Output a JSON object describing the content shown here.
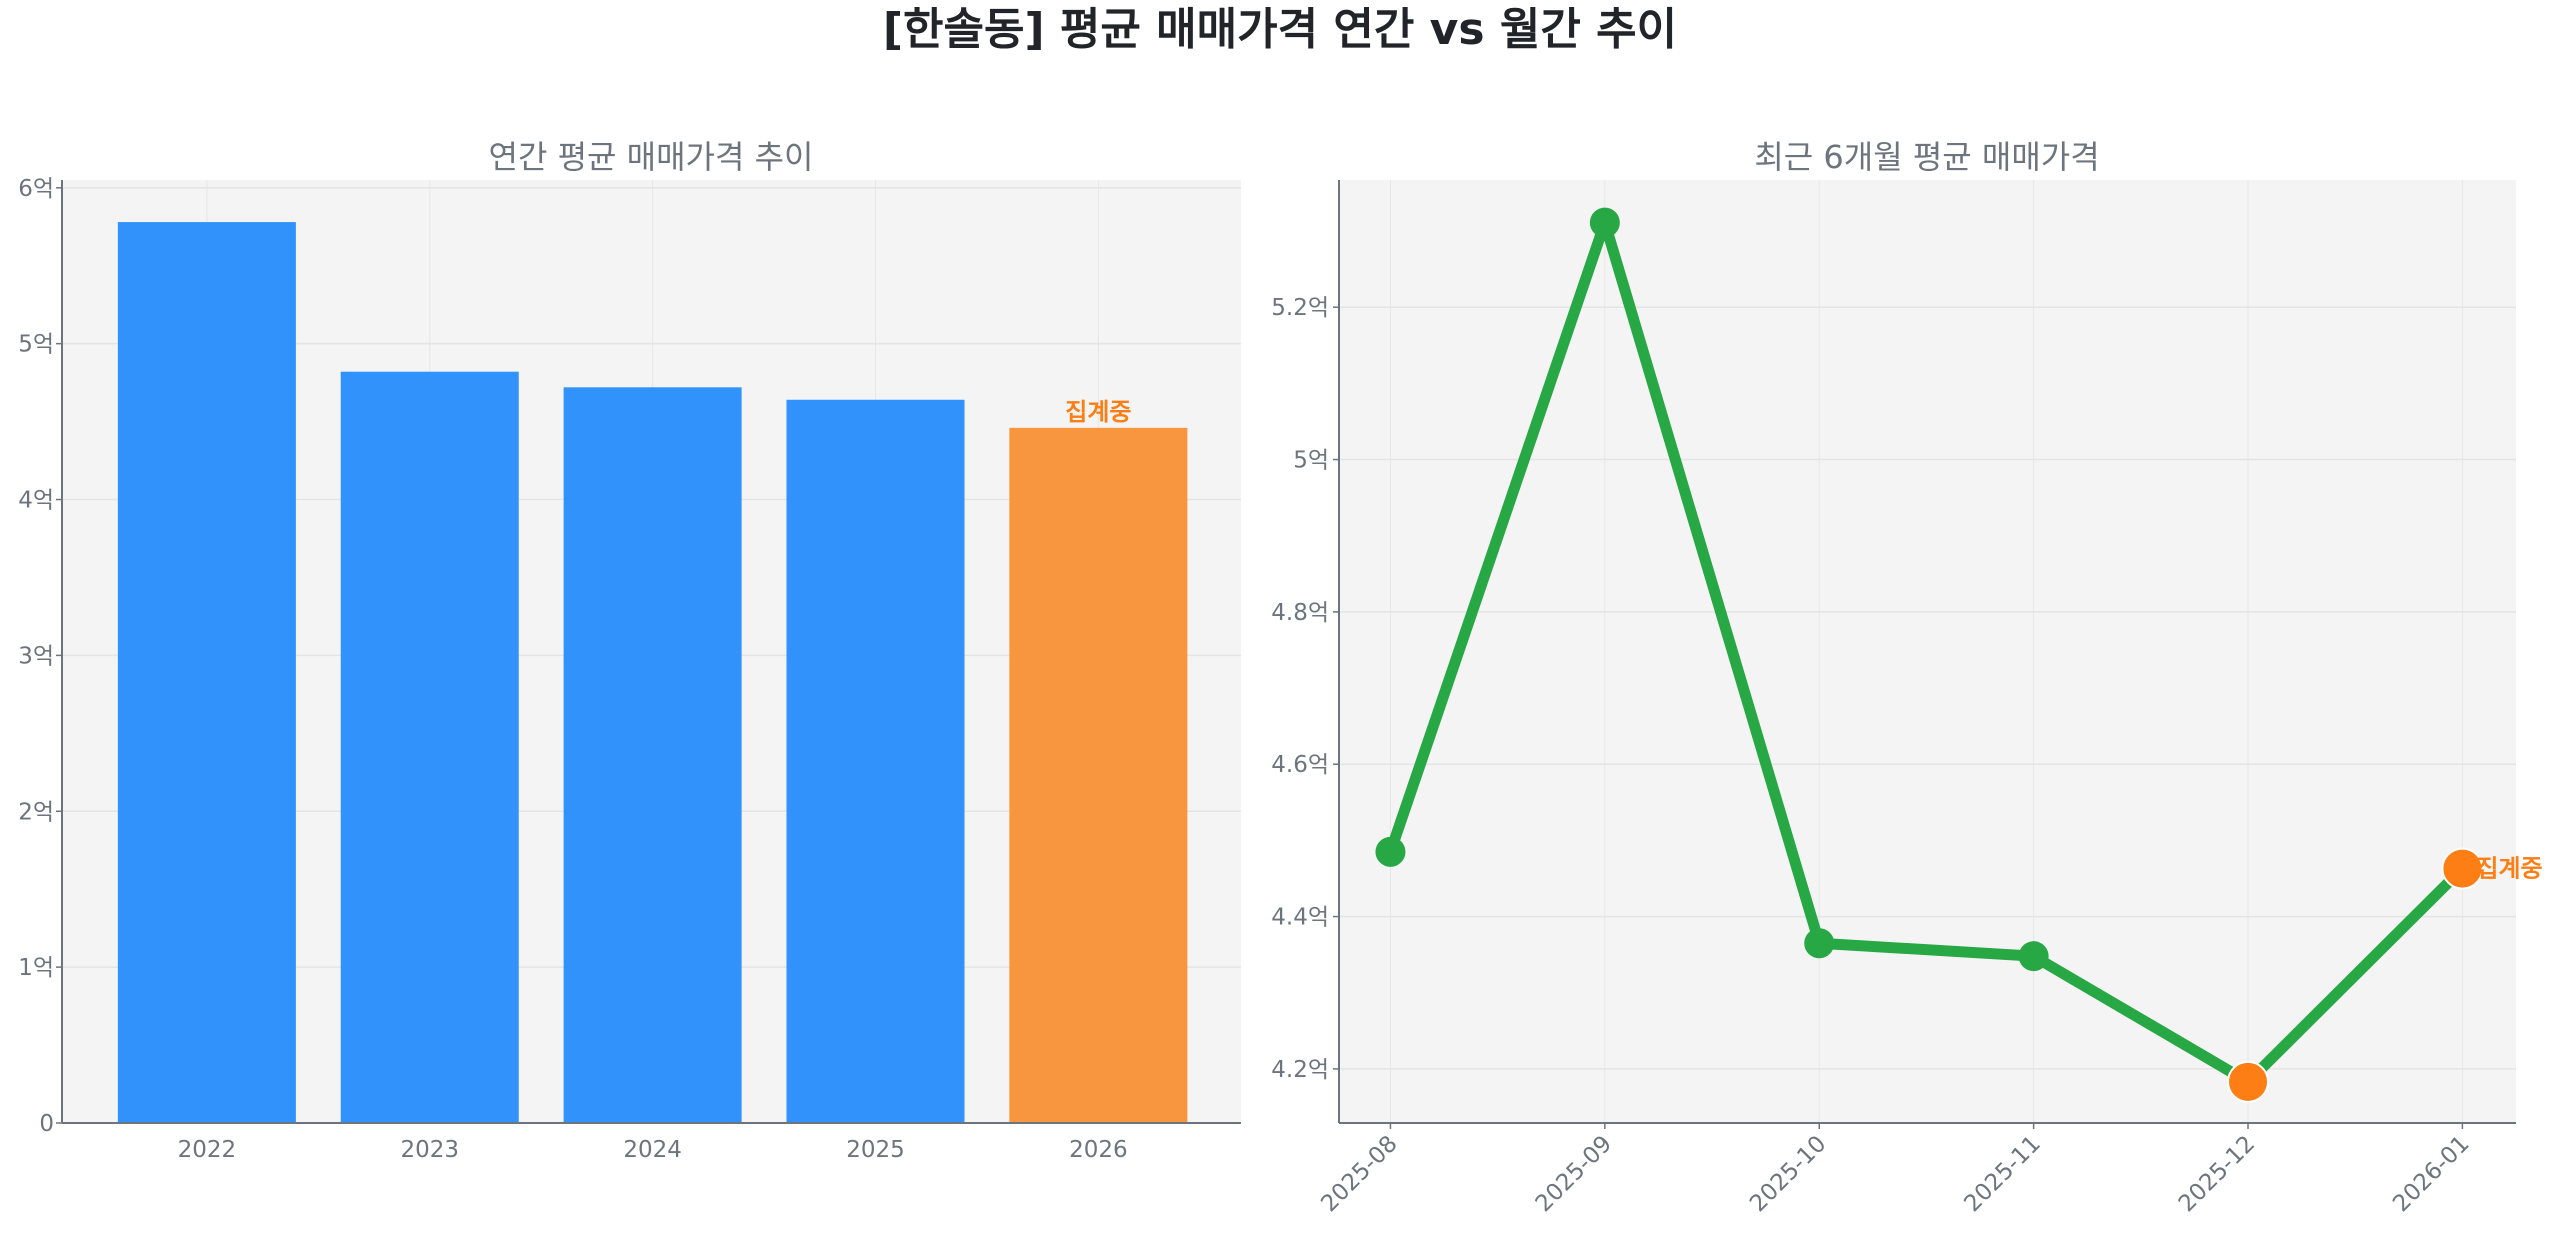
{
  "title": "[한솔동] 평균 매매가격 연간 vs 월간 추이",
  "chart_data": [
    {
      "type": "bar",
      "title": "연간 평균 매매가격 추이",
      "xlabel": "",
      "ylabel": "",
      "categories": [
        "2022",
        "2023",
        "2024",
        "2025",
        "2026"
      ],
      "values": [
        5.78,
        4.82,
        4.72,
        4.64,
        4.46
      ],
      "unit": "억",
      "ylim": [
        0,
        6.05
      ],
      "yticks": [
        0,
        1,
        2,
        3,
        4,
        5,
        6
      ],
      "ytick_labels": [
        "0",
        "1억",
        "2억",
        "3억",
        "4억",
        "5억",
        "6억"
      ],
      "bar_colors": [
        "#3092fa",
        "#3092fa",
        "#3092fa",
        "#3092fa",
        "#f89640"
      ],
      "annotations": [
        {
          "category": "2026",
          "text": "집계중"
        }
      ],
      "grid": true
    },
    {
      "type": "line",
      "title": "최근 6개월 평균 매매가격",
      "xlabel": "",
      "ylabel": "",
      "categories": [
        "2025-08",
        "2025-09",
        "2025-10",
        "2025-11",
        "2025-12",
        "2026-01"
      ],
      "values": [
        4.485,
        5.311,
        4.365,
        4.348,
        4.183,
        4.463
      ],
      "unit": "억",
      "ylim": [
        4.129,
        5.367
      ],
      "yticks": [
        4.2,
        4.4,
        4.6,
        4.8,
        5.0,
        5.2
      ],
      "ytick_labels": [
        "4.2억",
        "4.4억",
        "4.6억",
        "4.8억",
        "5억",
        "5.2억"
      ],
      "line_color": "#28a745",
      "highlight_color": "#fd7e14",
      "highlight_points": [
        "2025-12",
        "2026-01"
      ],
      "annotations": [
        {
          "category": "2026-01",
          "text": "집계중"
        }
      ],
      "grid": true
    }
  ]
}
